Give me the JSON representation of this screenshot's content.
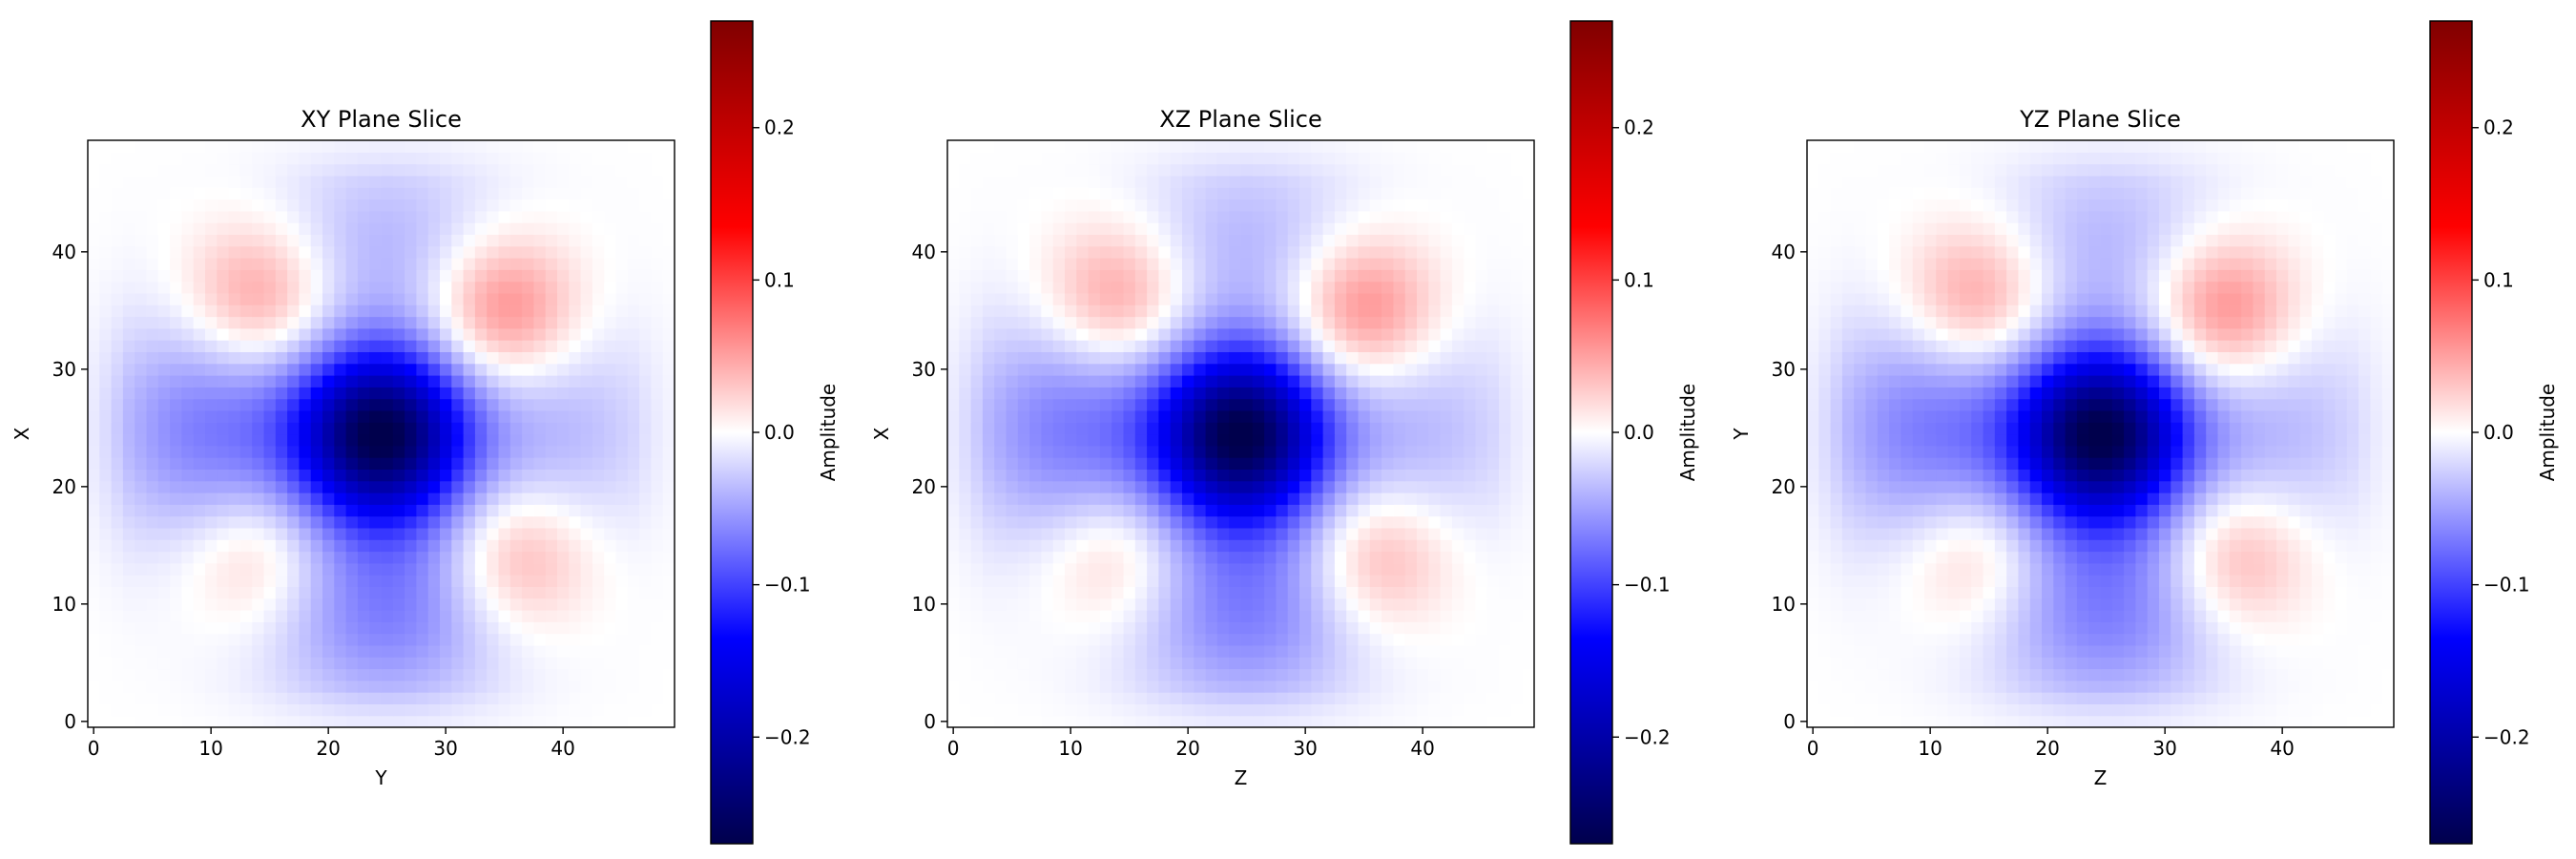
{
  "chart_data": [
    {
      "type": "heatmap",
      "title": "XY Plane Slice",
      "xlabel": "Y",
      "ylabel": "X",
      "grid_size": 50,
      "xlim": [
        -0.5,
        49.5
      ],
      "ylim": [
        -0.5,
        49.5
      ],
      "xticks": [
        0,
        10,
        20,
        30,
        40
      ],
      "yticks": [
        0,
        10,
        20,
        30,
        40
      ],
      "colormap": "seismic",
      "vmin": -0.27,
      "vmax": 0.27,
      "colorbar": {
        "label": "Amplitude",
        "ticks": [
          -0.2,
          -0.1,
          0.0,
          0.1,
          0.2
        ],
        "tick_labels": [
          "−0.2",
          "−0.1",
          "0.0",
          "0.1",
          "0.2"
        ]
      },
      "features": {
        "center_min": -0.26,
        "side_lobes": [
          {
            "x": 10,
            "y": 25,
            "value": -0.07
          },
          {
            "x": 39,
            "y": 25,
            "value": -0.04
          },
          {
            "x": 25,
            "y": 10,
            "value": -0.07
          },
          {
            "x": 25,
            "y": 40,
            "value": -0.04
          }
        ],
        "positive_lobes": [
          {
            "x": 35,
            "y": 35,
            "value": 0.08
          },
          {
            "x": 14,
            "y": 36,
            "value": 0.07
          },
          {
            "x": 14,
            "y": 14,
            "value": 0.05
          },
          {
            "x": 36,
            "y": 14,
            "value": 0.06
          }
        ]
      }
    },
    {
      "type": "heatmap",
      "title": "XZ Plane Slice",
      "xlabel": "Z",
      "ylabel": "X",
      "grid_size": 50,
      "xlim": [
        -0.5,
        49.5
      ],
      "ylim": [
        -0.5,
        49.5
      ],
      "xticks": [
        0,
        10,
        20,
        30,
        40
      ],
      "yticks": [
        0,
        10,
        20,
        30,
        40
      ],
      "colormap": "seismic",
      "vmin": -0.27,
      "vmax": 0.27,
      "colorbar": {
        "label": "Amplitude",
        "ticks": [
          -0.2,
          -0.1,
          0.0,
          0.1,
          0.2
        ],
        "tick_labels": [
          "−0.2",
          "−0.1",
          "0.0",
          "0.1",
          "0.2"
        ]
      },
      "features": {
        "center_min": -0.26,
        "side_lobes": [
          {
            "x": 10,
            "y": 25,
            "value": -0.07
          },
          {
            "x": 39,
            "y": 25,
            "value": -0.04
          },
          {
            "x": 25,
            "y": 10,
            "value": -0.07
          },
          {
            "x": 25,
            "y": 40,
            "value": -0.04
          }
        ],
        "positive_lobes": [
          {
            "x": 35,
            "y": 35,
            "value": 0.08
          },
          {
            "x": 14,
            "y": 36,
            "value": 0.07
          },
          {
            "x": 14,
            "y": 14,
            "value": 0.05
          },
          {
            "x": 36,
            "y": 14,
            "value": 0.06
          }
        ]
      }
    },
    {
      "type": "heatmap",
      "title": "YZ Plane Slice",
      "xlabel": "Z",
      "ylabel": "Y",
      "grid_size": 50,
      "xlim": [
        -0.5,
        49.5
      ],
      "ylim": [
        -0.5,
        49.5
      ],
      "xticks": [
        0,
        10,
        20,
        30,
        40
      ],
      "yticks": [
        0,
        10,
        20,
        30,
        40
      ],
      "colormap": "seismic",
      "vmin": -0.27,
      "vmax": 0.27,
      "colorbar": {
        "label": "Amplitude",
        "ticks": [
          -0.2,
          -0.1,
          0.0,
          0.1,
          0.2
        ],
        "tick_labels": [
          "−0.2",
          "−0.1",
          "0.0",
          "0.1",
          "0.2"
        ]
      },
      "features": {
        "center_min": -0.26,
        "side_lobes": [
          {
            "x": 10,
            "y": 25,
            "value": -0.07
          },
          {
            "x": 39,
            "y": 25,
            "value": -0.04
          },
          {
            "x": 25,
            "y": 10,
            "value": -0.07
          },
          {
            "x": 25,
            "y": 40,
            "value": -0.04
          }
        ],
        "positive_lobes": [
          {
            "x": 35,
            "y": 35,
            "value": 0.08
          },
          {
            "x": 14,
            "y": 36,
            "value": 0.07
          },
          {
            "x": 14,
            "y": 14,
            "value": 0.05
          },
          {
            "x": 36,
            "y": 14,
            "value": 0.06
          }
        ]
      }
    }
  ]
}
